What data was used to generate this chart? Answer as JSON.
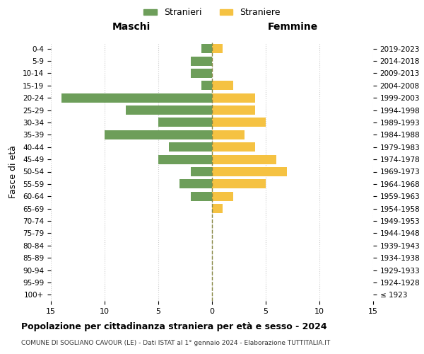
{
  "age_groups": [
    "100+",
    "95-99",
    "90-94",
    "85-89",
    "80-84",
    "75-79",
    "70-74",
    "65-69",
    "60-64",
    "55-59",
    "50-54",
    "45-49",
    "40-44",
    "35-39",
    "30-34",
    "25-29",
    "20-24",
    "15-19",
    "10-14",
    "5-9",
    "0-4"
  ],
  "birth_years": [
    "≤ 1923",
    "1924-1928",
    "1929-1933",
    "1934-1938",
    "1939-1943",
    "1944-1948",
    "1949-1953",
    "1954-1958",
    "1959-1963",
    "1964-1968",
    "1969-1973",
    "1974-1978",
    "1979-1983",
    "1984-1988",
    "1989-1993",
    "1994-1998",
    "1999-2003",
    "2004-2008",
    "2009-2013",
    "2014-2018",
    "2019-2023"
  ],
  "males": [
    0,
    0,
    0,
    0,
    0,
    0,
    0,
    0,
    2,
    3,
    2,
    5,
    4,
    10,
    5,
    8,
    14,
    1,
    2,
    2,
    1
  ],
  "females": [
    0,
    0,
    0,
    0,
    0,
    0,
    0,
    1,
    2,
    5,
    7,
    6,
    4,
    3,
    5,
    4,
    4,
    2,
    0,
    0,
    1
  ],
  "male_color": "#6d9e5a",
  "female_color": "#f5c242",
  "title_main": "Popolazione per cittadinanza straniera per età e sesso - 2024",
  "title_sub": "COMUNE DI SOGLIANO CAVOUR (LE) - Dati ISTAT al 1° gennaio 2024 - Elaborazione TUTTITALIA.IT",
  "legend_male": "Stranieri",
  "legend_female": "Straniere",
  "xlabel_left": "Maschi",
  "xlabel_right": "Femmine",
  "ylabel_left": "Fasce di età",
  "xlim": 15,
  "background_color": "#ffffff",
  "grid_color": "#cccccc"
}
